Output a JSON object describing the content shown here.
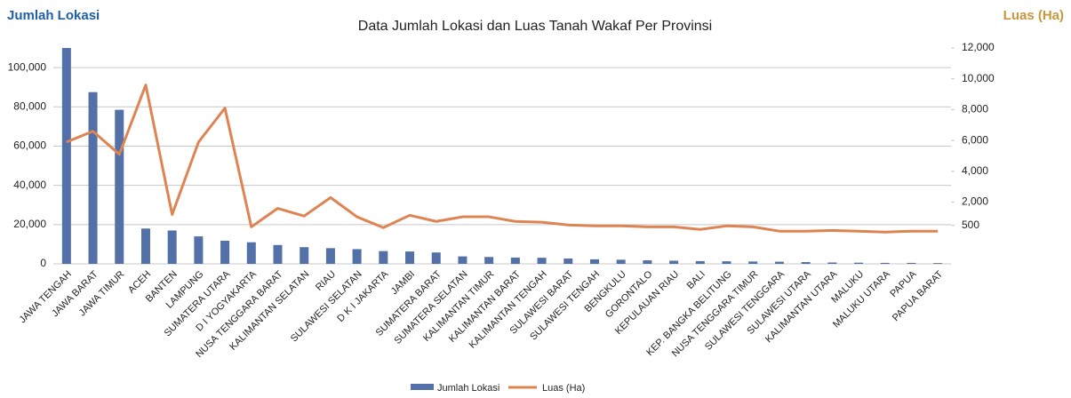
{
  "chart_data": {
    "type": "bar_line",
    "title": "Data Jumlah Lokasi dan Luas Tanah Wakaf Per Provinsi",
    "y_label": "Jumlah Lokasi",
    "y2_label": "Luas (Ha)",
    "categories": [
      "JAWA TENGAH",
      "JAWA BARAT",
      "JAWA TIMUR",
      "ACEH",
      "BANTEN",
      "LAMPUNG",
      "SUMATERA UTARA",
      "D I YOGYAKARTA",
      "NUSA TENGGARA BARAT",
      "KALIMANTAN SELATAN",
      "RIAU",
      "SULAWESI SELATAN",
      "D K I JAKARTA",
      "JAMBI",
      "SUMATERA BARAT",
      "SUMATERA SELATAN",
      "KALIMANTAN TIMUR",
      "KALIMANTAN BARAT",
      "KALIMANTAN TENGAH",
      "SULAWESI BARAT",
      "SULAWESI TENGAH",
      "BENGKULU",
      "GORONTALO",
      "KEPULAUAN RIAU",
      "BALI",
      "KEP. BANGKA BELITUNG",
      "NUSA TENGGARA TIMUR",
      "SULAWESI TENGGARA",
      "SULAWESI UTARA",
      "KALIMANTAN UTARA",
      "MALUKU",
      "MALUKU UTARA",
      "PAPUA",
      "PAPUA BARAT"
    ],
    "series": [
      {
        "name": "Jumlah Lokasi",
        "color": "#5470a8",
        "kind": "bar",
        "values": [
          110000,
          87500,
          78500,
          18000,
          17000,
          14000,
          11800,
          11000,
          9600,
          8500,
          8000,
          7500,
          6500,
          6300,
          5800,
          3800,
          3500,
          3200,
          3100,
          2700,
          2300,
          2100,
          1800,
          1600,
          1400,
          1300,
          1200,
          1100,
          900,
          700,
          600,
          500,
          500,
          400
        ]
      },
      {
        "name": "Luas (Ha)",
        "color": "#dd8452",
        "kind": "line",
        "axis": "y2",
        "values": [
          5900,
          6600,
          5100,
          9600,
          1200,
          5900,
          8100,
          400,
          1600,
          1100,
          2300,
          1050,
          350,
          1150,
          750,
          1050,
          1050,
          750,
          700,
          520,
          460,
          460,
          400,
          400,
          230,
          460,
          400,
          120,
          120,
          170,
          120,
          60,
          120,
          120
        ]
      }
    ],
    "ylim": [
      0,
      110000
    ],
    "yticks": [
      0,
      {
        "value": 20000,
        "label": "20,000"
      },
      {
        "value": 40000,
        "label": "40,000"
      },
      {
        "value": 60000,
        "label": "60,000"
      },
      {
        "value": 80000,
        "label": "80,000"
      },
      {
        "value": 100000,
        "label": "100,000"
      }
    ],
    "y2lim": [
      -2000,
      12000
    ],
    "y2ticks": [
      500,
      {
        "value": 2000,
        "label": "2,000"
      },
      {
        "value": 4000,
        "label": "4,000"
      },
      {
        "value": 6000,
        "label": "6,000"
      },
      {
        "value": 8000,
        "label": "8,000"
      },
      {
        "value": 10000,
        "label": "10,000"
      },
      {
        "value": 12000,
        "label": "12,000"
      }
    ],
    "grid": true
  }
}
